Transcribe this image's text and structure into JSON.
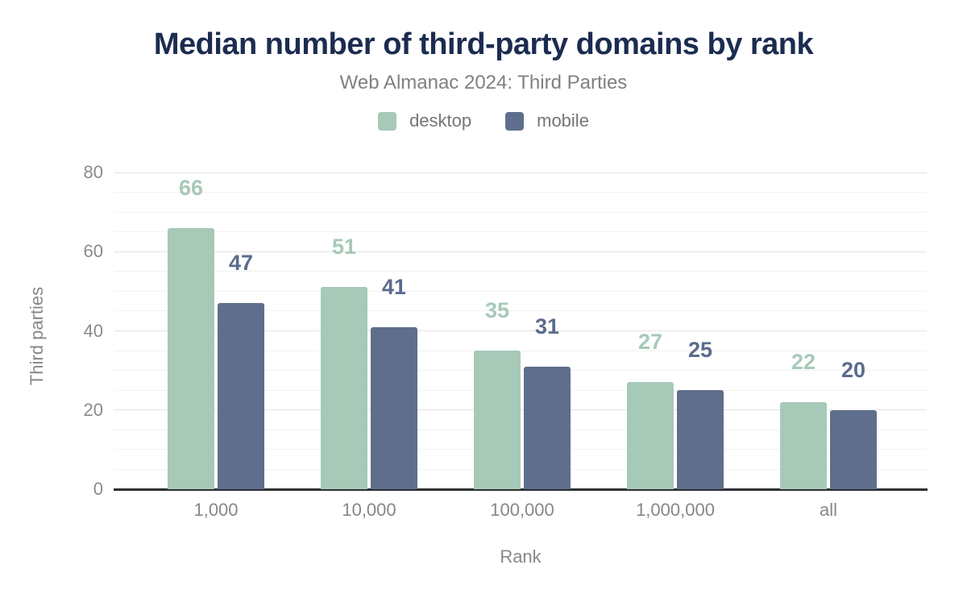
{
  "title": "Median number of third-party domains by rank",
  "subtitle": "Web Almanac 2024: Third Parties",
  "colors": {
    "title": "#1b2c50",
    "subtitle": "#7e8083",
    "axis_text": "#85878a",
    "baseline": "#2e2f31",
    "major_grid": "#e3e3e4",
    "minor_grid": "#f2f2f1",
    "desktop": "#a7c9b8",
    "mobile": "#5f6e8c",
    "desktop_label": "#a7c9b8",
    "mobile_label": "#5a6b8c"
  },
  "chart_data": {
    "type": "bar",
    "title": "Median number of third-party domains by rank",
    "subtitle": "Web Almanac 2024: Third Parties",
    "categories": [
      "1,000",
      "10,000",
      "100,000",
      "1,000,000",
      "all"
    ],
    "series": [
      {
        "name": "desktop",
        "color": "#a7c9b8",
        "label_color": "#a7c9b8",
        "values": [
          66,
          51,
          35,
          27,
          22
        ]
      },
      {
        "name": "mobile",
        "color": "#5f6e8c",
        "label_color": "#5a6b8c",
        "values": [
          47,
          41,
          31,
          25,
          20
        ]
      }
    ],
    "xlabel": "Rank",
    "ylabel": "Third parties",
    "ylim": [
      0,
      80
    ],
    "yticks": [
      0,
      20,
      40,
      60,
      80
    ],
    "minor_grid_step": 5,
    "grid": true,
    "legend_position": "top",
    "bar_value_labels": true
  }
}
